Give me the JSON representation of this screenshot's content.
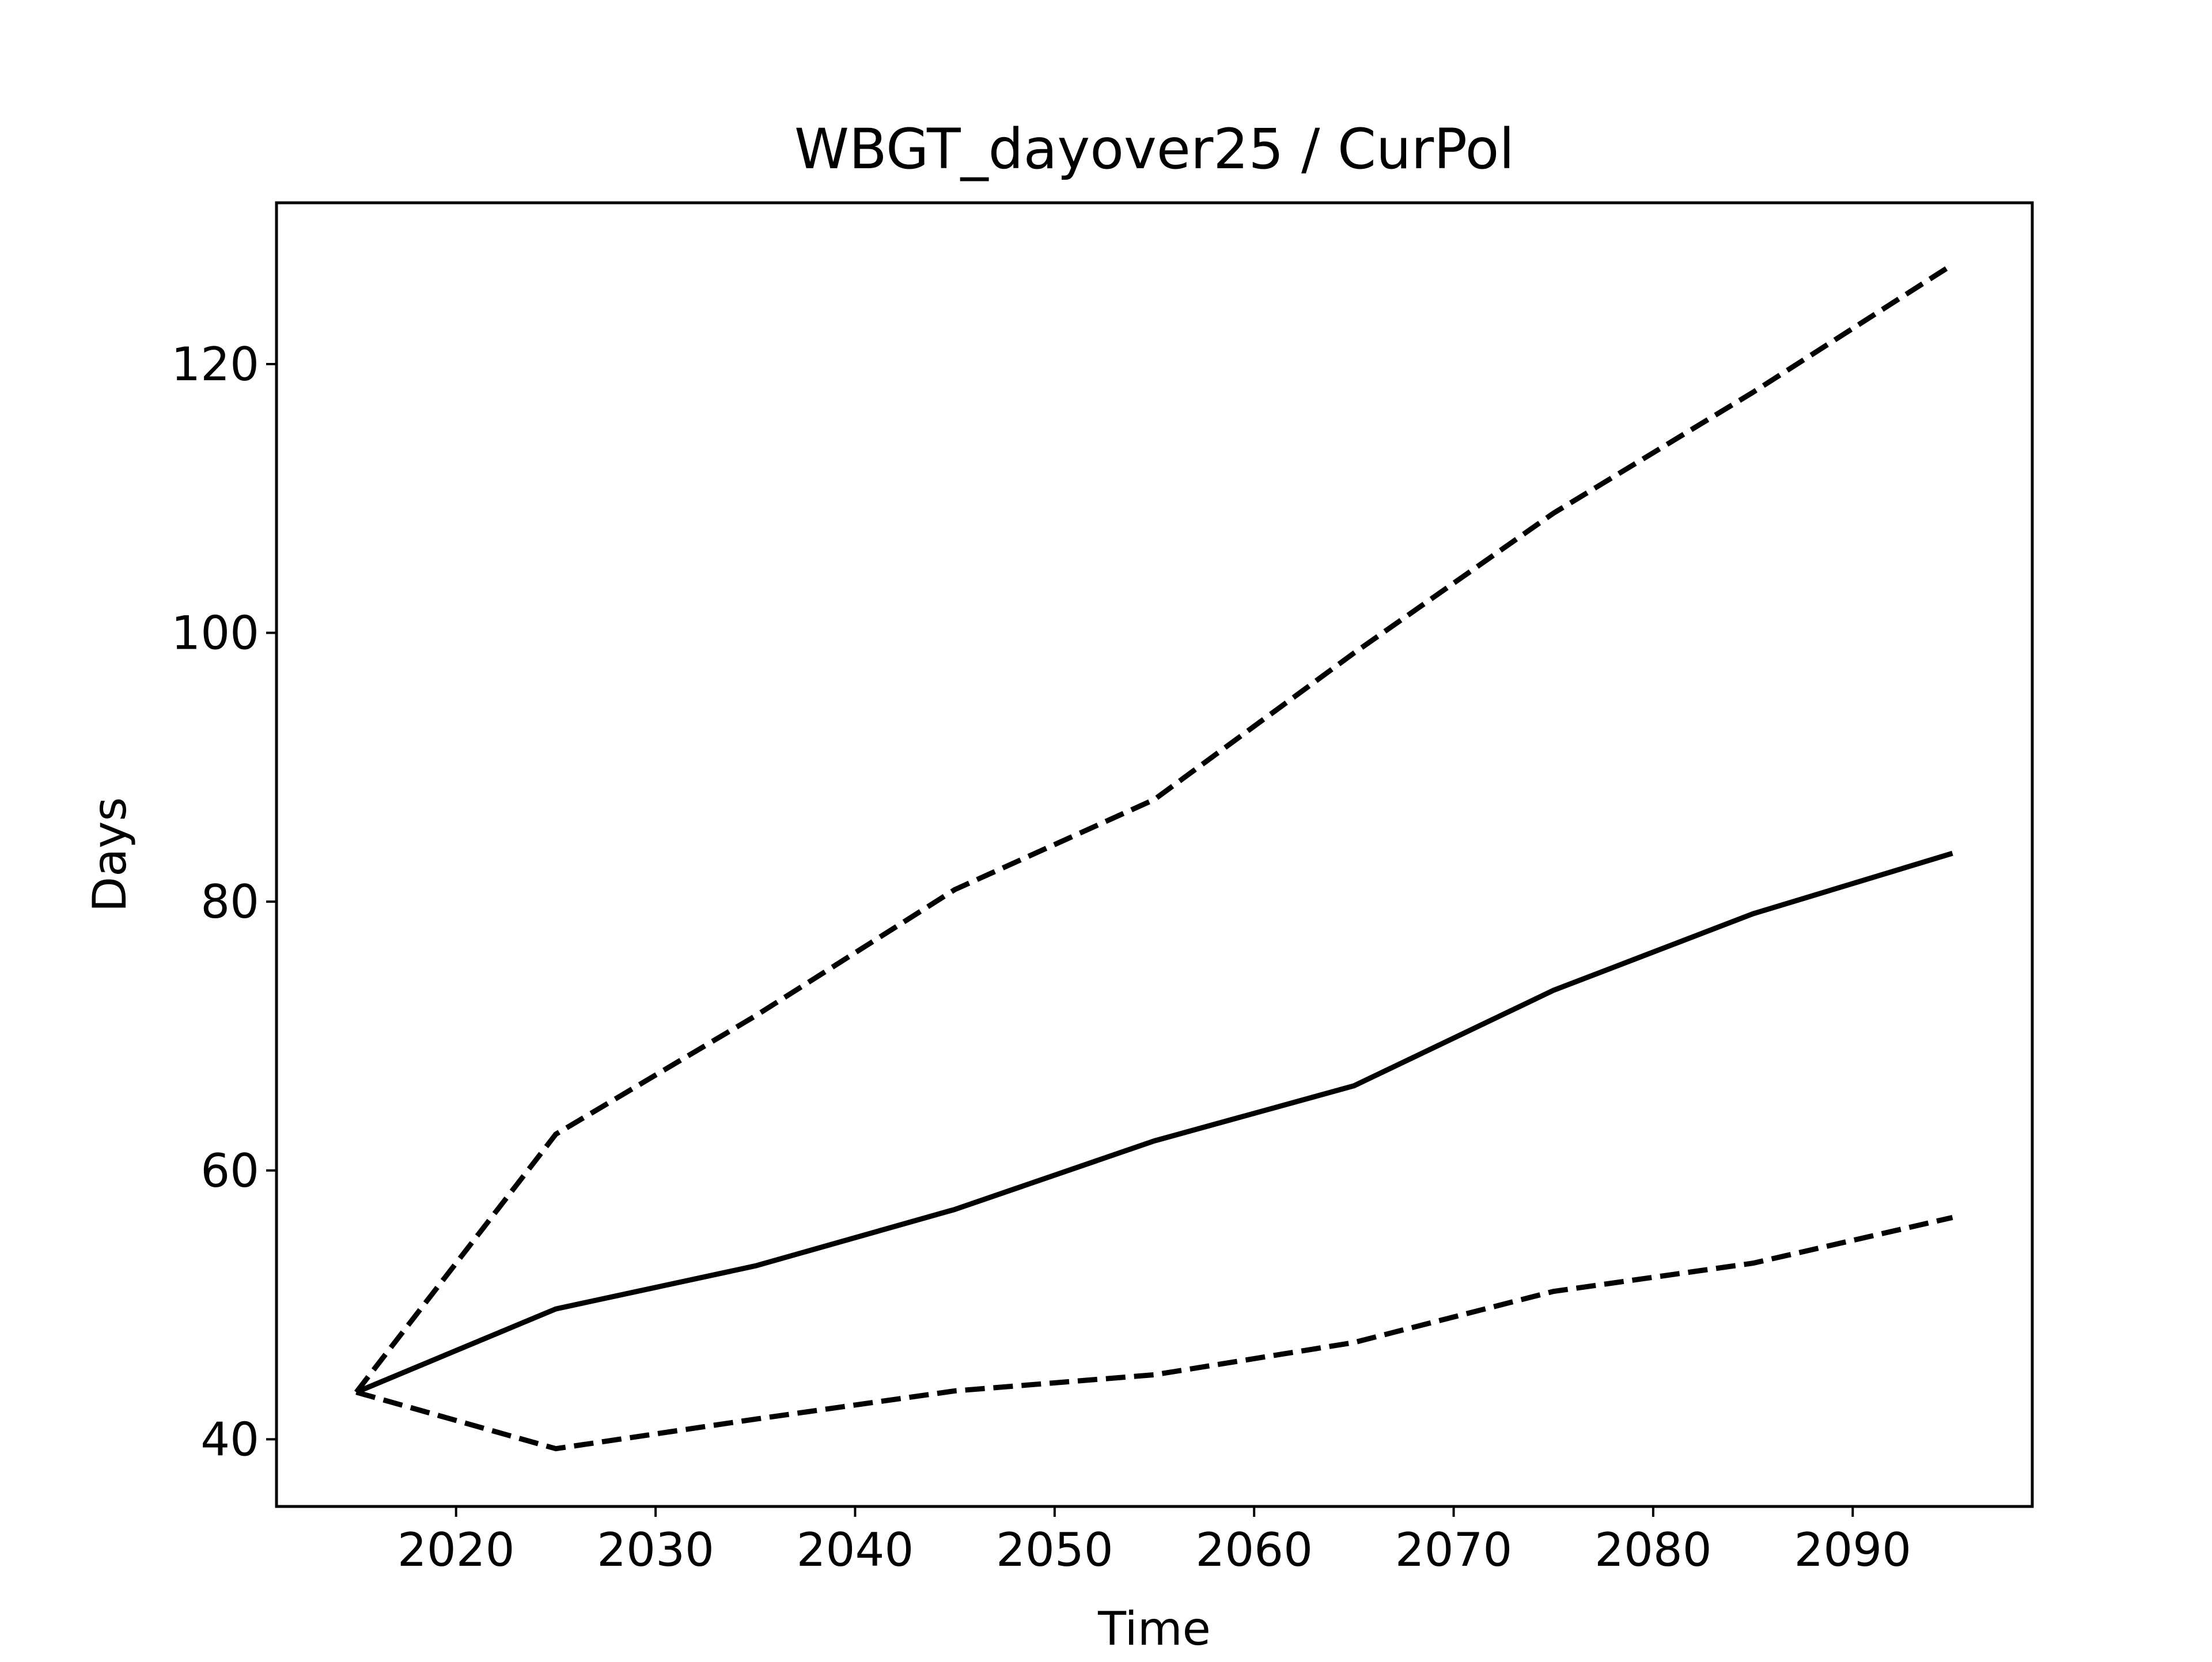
{
  "chart_data": {
    "type": "line",
    "title": "WBGT_dayover25 / CurPol",
    "xlabel": "Time",
    "ylabel": "Days",
    "xlim": [
      2011,
      2099
    ],
    "ylim": [
      35,
      132
    ],
    "xticks": [
      2020,
      2030,
      2040,
      2050,
      2060,
      2070,
      2080,
      2090
    ],
    "yticks": [
      40,
      60,
      80,
      100,
      120
    ],
    "grid": false,
    "legend": "none",
    "x": [
      2015,
      2025,
      2035,
      2045,
      2055,
      2065,
      2075,
      2085,
      2095
    ],
    "series": [
      {
        "style": "solid",
        "color": "#000000",
        "values": [
          43.5,
          49.7,
          52.9,
          57.1,
          62.2,
          66.3,
          73.4,
          79.1,
          83.6
        ]
      },
      {
        "style": "dashed",
        "color": "#000000",
        "values": [
          43.5,
          62.7,
          71.5,
          80.9,
          87.6,
          98.5,
          108.9,
          117.9,
          127.4
        ]
      },
      {
        "style": "dashed",
        "color": "#000000",
        "values": [
          43.5,
          39.3,
          41.5,
          43.6,
          44.8,
          47.2,
          51.0,
          53.1,
          56.5
        ]
      }
    ]
  }
}
